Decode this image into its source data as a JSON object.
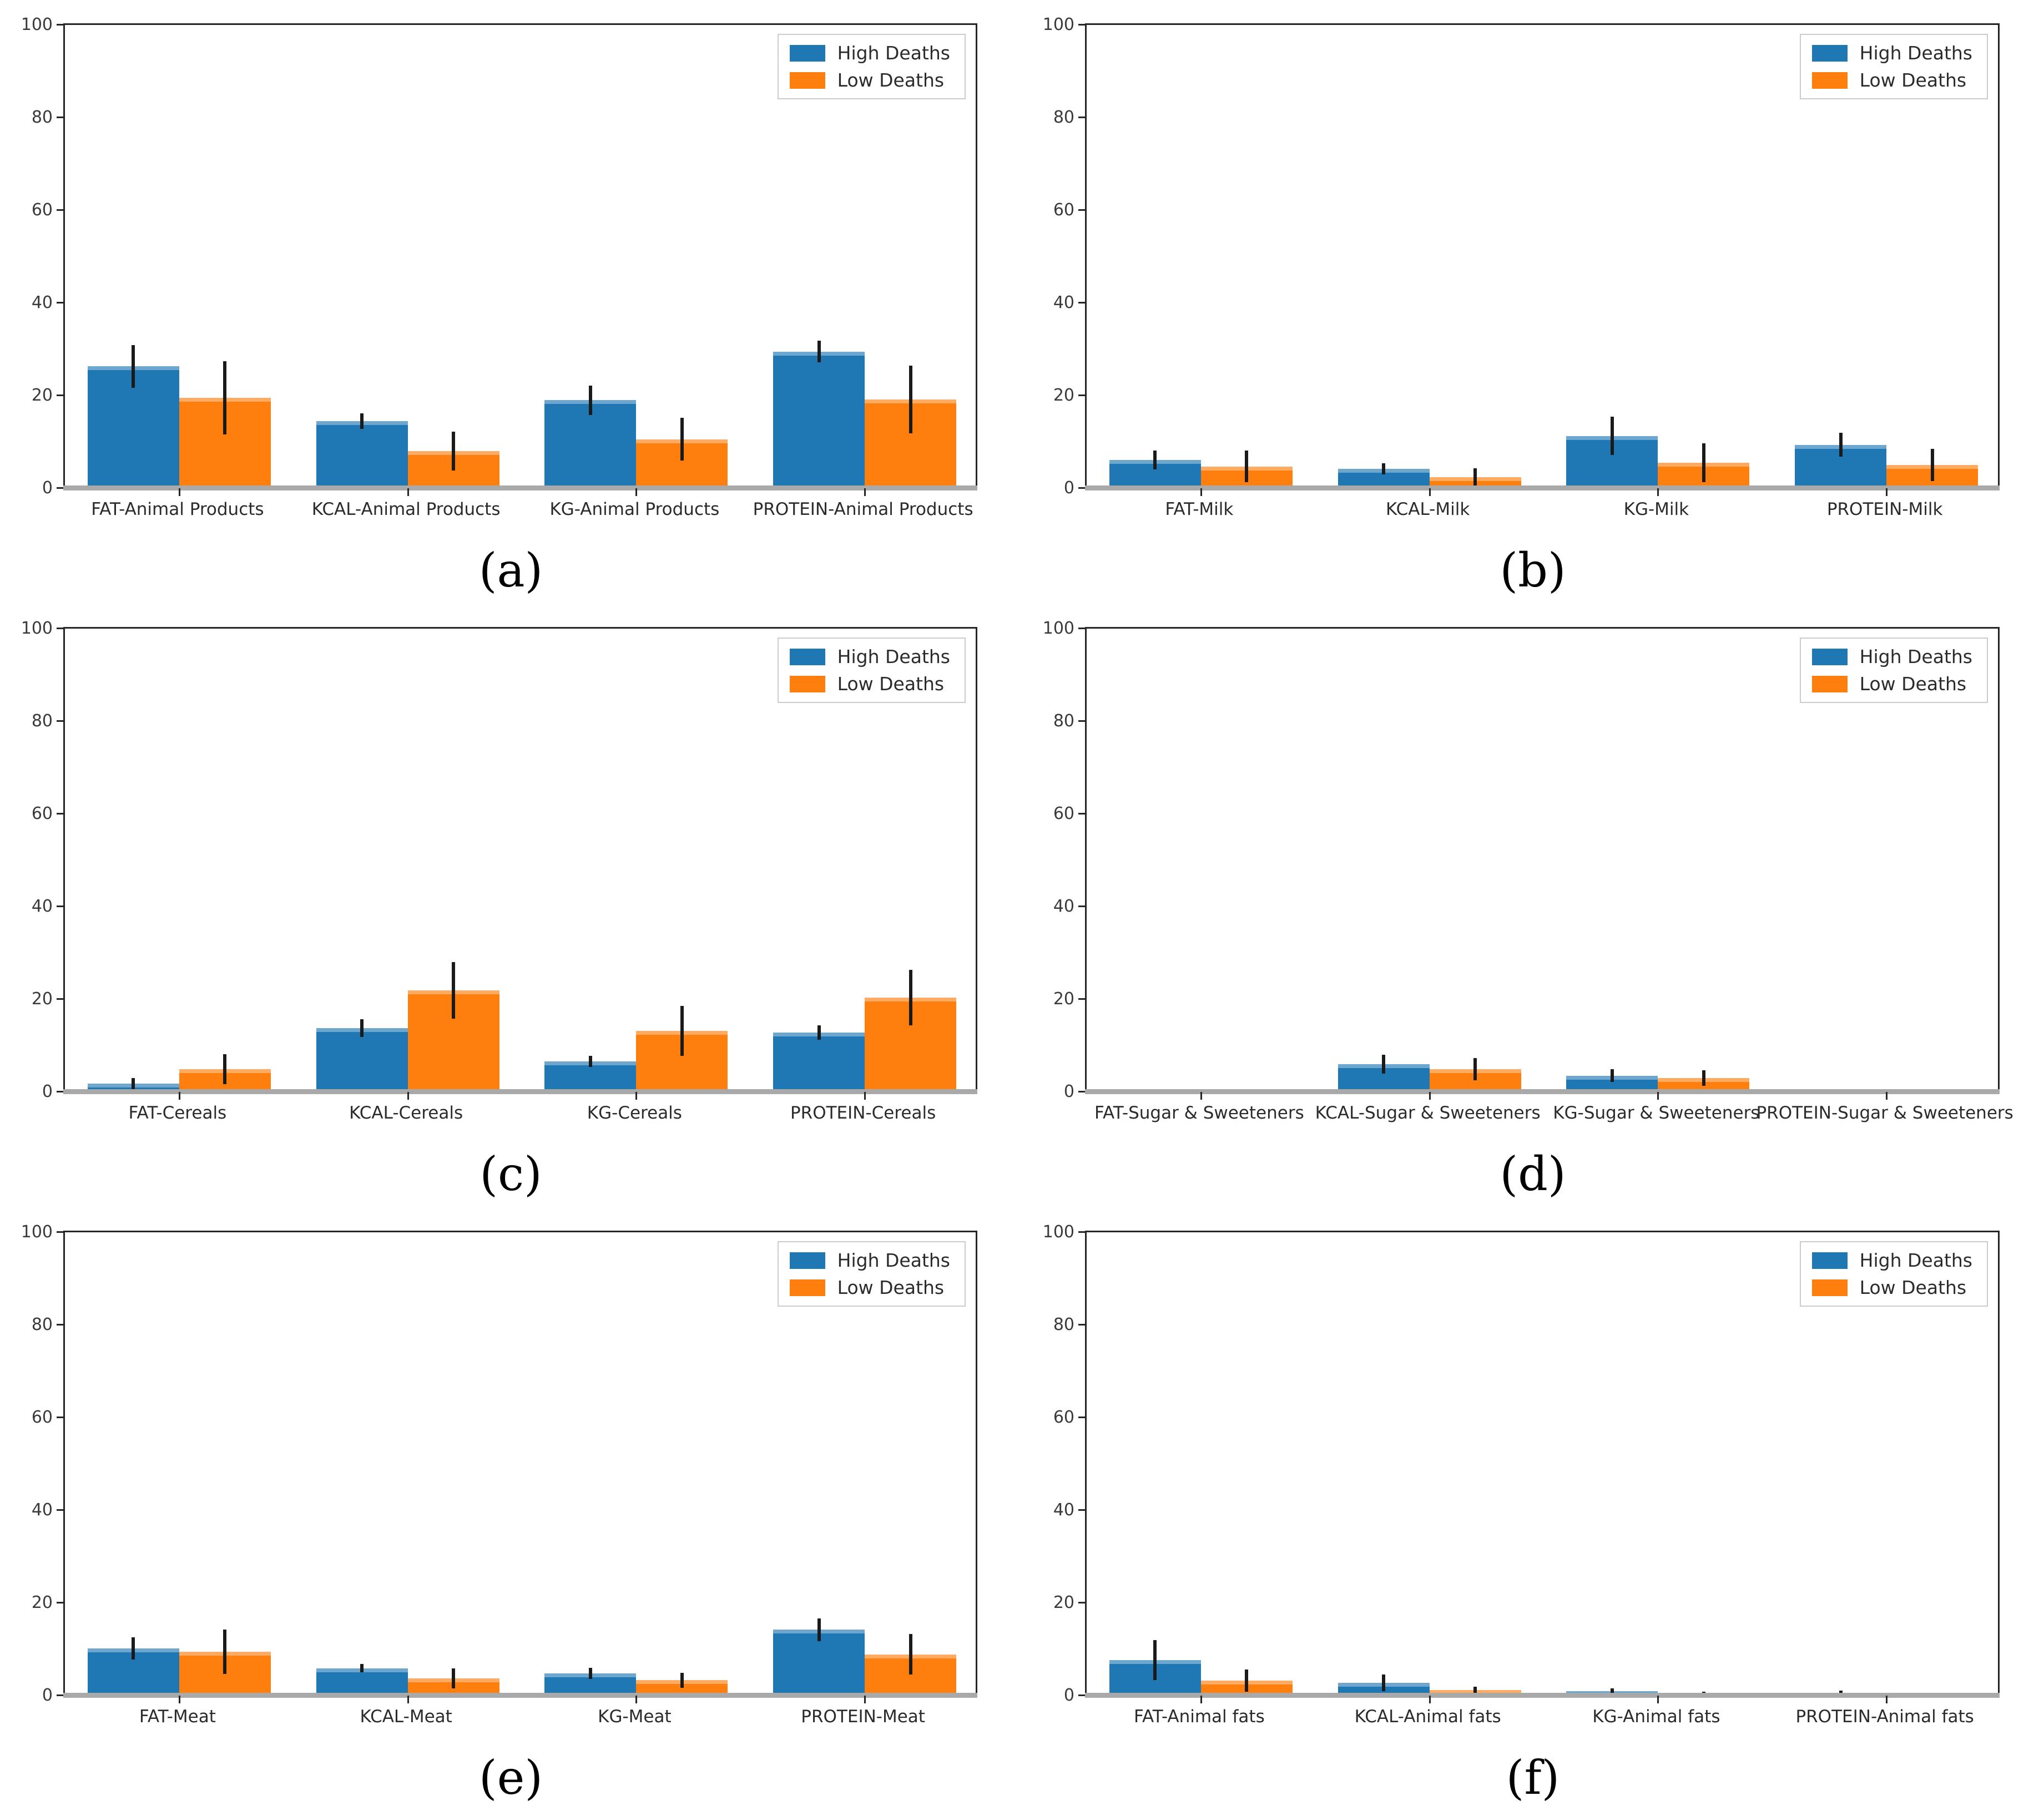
{
  "legend": {
    "high_label": "High Deaths",
    "low_label": "Low Deaths"
  },
  "colors": {
    "high": "#1f77b4",
    "low": "#ff7f0e",
    "error_bar": "#1a1a1a",
    "bottom_axis": "#a9a9a9",
    "spine": "#262626",
    "tick_label": "#3a3a3a"
  },
  "axis": {
    "ylim": [
      0,
      100
    ],
    "yticks": [
      0,
      20,
      40,
      60,
      80,
      100
    ],
    "grid": false
  },
  "chart_data": [
    {
      "type": "bar",
      "panel_label": "(a)",
      "categories": [
        "FAT-Animal Products",
        "KCAL-Animal Products",
        "KG-Animal Products",
        "PROTEIN-Animal Products"
      ],
      "ylim": [
        0,
        100
      ],
      "legend_position": "upper right",
      "series": [
        {
          "name": "High Deaths",
          "color_key": "high",
          "values": [
            26.3,
            14.5,
            19.0,
            29.5
          ],
          "errors": [
            4.6,
            1.7,
            3.2,
            2.3
          ]
        },
        {
          "name": "Low Deaths",
          "color_key": "low",
          "values": [
            19.5,
            8.0,
            10.6,
            19.2
          ],
          "errors": [
            7.9,
            4.2,
            4.6,
            7.3
          ]
        }
      ]
    },
    {
      "type": "bar",
      "panel_label": "(b)",
      "categories": [
        "FAT-Milk",
        "KCAL-Milk",
        "KG-Milk",
        "PROTEIN-Milk"
      ],
      "ylim": [
        0,
        100
      ],
      "legend_position": "upper right",
      "series": [
        {
          "name": "High Deaths",
          "color_key": "high",
          "values": [
            6.1,
            4.2,
            11.3,
            9.4
          ],
          "errors": [
            2.0,
            1.2,
            4.1,
            2.6
          ]
        },
        {
          "name": "Low Deaths",
          "color_key": "low",
          "values": [
            4.7,
            2.4,
            5.5,
            5.0
          ],
          "errors": [
            3.4,
            1.9,
            4.2,
            3.5
          ]
        }
      ]
    },
    {
      "type": "bar",
      "panel_label": "(c)",
      "categories": [
        "FAT-Cereals",
        "KCAL-Cereals",
        "KG-Cereals",
        "PROTEIN-Cereals"
      ],
      "ylim": [
        0,
        100
      ],
      "legend_position": "upper right",
      "series": [
        {
          "name": "High Deaths",
          "color_key": "high",
          "values": [
            1.8,
            13.8,
            6.6,
            12.8
          ],
          "errors": [
            1.2,
            1.9,
            1.2,
            1.6
          ]
        },
        {
          "name": "Low Deaths",
          "color_key": "low",
          "values": [
            4.9,
            21.9,
            13.2,
            20.4
          ],
          "errors": [
            3.2,
            6.1,
            5.4,
            6.0
          ]
        }
      ]
    },
    {
      "type": "bar",
      "panel_label": "(d)",
      "categories": [
        "FAT-Sugar & Sweeteners",
        "KCAL-Sugar & Sweeteners",
        "KG-Sugar & Sweeteners",
        "PROTEIN-Sugar & Sweeteners"
      ],
      "ylim": [
        0,
        100
      ],
      "legend_position": "upper right",
      "series": [
        {
          "name": "High Deaths",
          "color_key": "high",
          "values": [
            0,
            6.0,
            3.5,
            0
          ],
          "errors": [
            0,
            2.0,
            1.4,
            0
          ]
        },
        {
          "name": "Low Deaths",
          "color_key": "low",
          "values": [
            0,
            4.9,
            3.0,
            0
          ],
          "errors": [
            0,
            2.4,
            1.7,
            0
          ]
        }
      ]
    },
    {
      "type": "bar",
      "panel_label": "(e)",
      "categories": [
        "FAT-Meat",
        "KCAL-Meat",
        "KG-Meat",
        "PROTEIN-Meat"
      ],
      "ylim": [
        0,
        100
      ],
      "legend_position": "upper right",
      "series": [
        {
          "name": "High Deaths",
          "color_key": "high",
          "values": [
            10.2,
            5.9,
            4.8,
            14.2
          ],
          "errors": [
            2.4,
            0.9,
            1.2,
            2.5
          ]
        },
        {
          "name": "Low Deaths",
          "color_key": "low",
          "values": [
            9.5,
            3.7,
            3.3,
            8.9
          ],
          "errors": [
            4.8,
            2.2,
            1.6,
            4.4
          ]
        }
      ]
    },
    {
      "type": "bar",
      "panel_label": "(f)",
      "categories": [
        "FAT-Animal fats",
        "KCAL-Animal fats",
        "KG-Animal fats",
        "PROTEIN-Animal fats"
      ],
      "ylim": [
        0,
        100
      ],
      "legend_position": "upper right",
      "series": [
        {
          "name": "High Deaths",
          "color_key": "high",
          "values": [
            7.7,
            2.8,
            1.0,
            0.6
          ],
          "errors": [
            4.3,
            1.8,
            0.6,
            0.5
          ]
        },
        {
          "name": "Low Deaths",
          "color_key": "low",
          "values": [
            3.2,
            1.2,
            0.5,
            0.1
          ],
          "errors": [
            2.4,
            0.7,
            0.4,
            0.2
          ]
        }
      ]
    }
  ]
}
